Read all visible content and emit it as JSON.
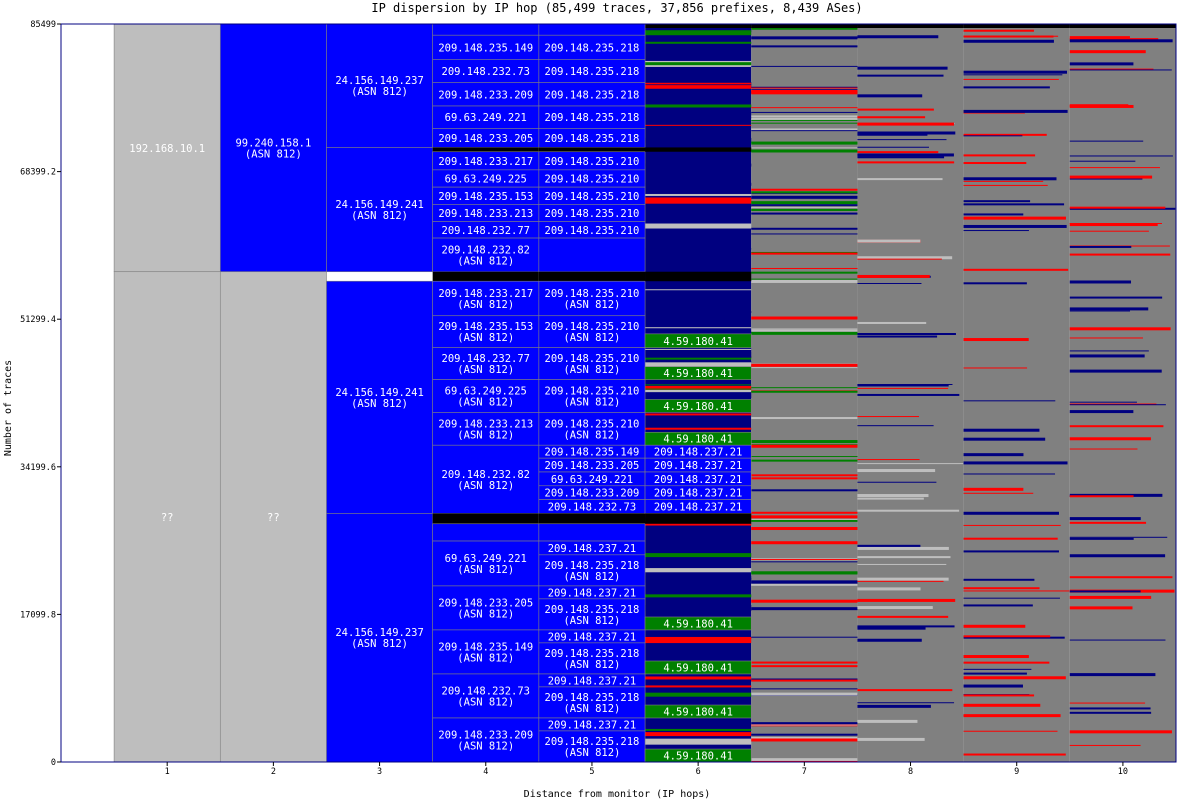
{
  "chart_data": {
    "type": "bar",
    "title": "IP dispersion by IP hop (85,499 traces, 37,856 prefixes, 8,439 ASes)",
    "xlabel": "Distance from monitor (IP hops)",
    "ylabel": "Number of traces",
    "ylim": [
      0,
      85499
    ],
    "yticks": [
      "0",
      "17099.8",
      "34199.6",
      "51299.4",
      "68399.2",
      "85499"
    ],
    "yticks_values": [
      0,
      17099.8,
      34199.6,
      51299.4,
      68399.2,
      85499
    ],
    "xticks": [
      "1",
      "2",
      "3",
      "4",
      "5",
      "6",
      "7",
      "8",
      "9",
      "10"
    ],
    "colors": {
      "blue": "#0000ff",
      "navy": "#000080",
      "green": "#008000",
      "red": "#ff0000",
      "black": "#000000",
      "gray": "#808080",
      "lightgray": "#bebebe",
      "white": "#ffffff"
    },
    "segments": [
      {
        "hop": 1,
        "y0": 56800,
        "y1": 85499,
        "color": "lightgray",
        "labels": [
          "192.168.10.1"
        ]
      },
      {
        "hop": 1,
        "y0": 0,
        "y1": 56800,
        "color": "lightgray",
        "labels": [
          "??"
        ]
      },
      {
        "hop": 2,
        "y0": 56800,
        "y1": 85499,
        "color": "blue",
        "labels": [
          "99.240.158.1",
          "(ASN 812)"
        ]
      },
      {
        "hop": 2,
        "y0": 0,
        "y1": 56800,
        "color": "lightgray",
        "labels": [
          "??"
        ]
      },
      {
        "hop": 3,
        "y0": 71200,
        "y1": 85499,
        "color": "blue",
        "labels": [
          "24.156.149.237",
          "(ASN 812)"
        ]
      },
      {
        "hop": 3,
        "y0": 56800,
        "y1": 71200,
        "color": "blue",
        "labels": [
          "24.156.149.241",
          "(ASN 812)"
        ]
      },
      {
        "hop": 3,
        "y0": 28800,
        "y1": 55700,
        "color": "blue",
        "labels": [
          "24.156.149.241",
          "(ASN 812)"
        ]
      },
      {
        "hop": 3,
        "y0": 0,
        "y1": 28800,
        "color": "blue",
        "labels": [
          "24.156.149.237",
          "(ASN 812)"
        ]
      },
      {
        "hop": 4,
        "y0": 84200,
        "y1": 85499,
        "color": "blue",
        "labels": []
      },
      {
        "hop": 4,
        "y0": 81400,
        "y1": 84200,
        "color": "blue",
        "labels": [
          "209.148.235.149"
        ]
      },
      {
        "hop": 4,
        "y0": 78700,
        "y1": 81400,
        "color": "blue",
        "labels": [
          "209.148.232.73"
        ]
      },
      {
        "hop": 4,
        "y0": 76000,
        "y1": 78700,
        "color": "blue",
        "labels": [
          "209.148.233.209"
        ]
      },
      {
        "hop": 4,
        "y0": 73400,
        "y1": 76000,
        "color": "blue",
        "labels": [
          "69.63.249.221"
        ]
      },
      {
        "hop": 4,
        "y0": 71200,
        "y1": 73400,
        "color": "blue",
        "labels": [
          "209.148.233.205"
        ]
      },
      {
        "hop": 4,
        "y0": 70700,
        "y1": 71200,
        "color": "black",
        "labels": []
      },
      {
        "hop": 4,
        "y0": 68600,
        "y1": 70700,
        "color": "blue",
        "labels": [
          "209.148.233.217"
        ]
      },
      {
        "hop": 4,
        "y0": 66600,
        "y1": 68600,
        "color": "blue",
        "labels": [
          "69.63.249.225"
        ]
      },
      {
        "hop": 4,
        "y0": 64600,
        "y1": 66600,
        "color": "blue",
        "labels": [
          "209.148.235.153"
        ]
      },
      {
        "hop": 4,
        "y0": 62600,
        "y1": 64600,
        "color": "blue",
        "labels": [
          "209.148.233.213"
        ]
      },
      {
        "hop": 4,
        "y0": 60700,
        "y1": 62600,
        "color": "blue",
        "labels": [
          "209.148.232.77"
        ]
      },
      {
        "hop": 4,
        "y0": 56800,
        "y1": 60700,
        "color": "blue",
        "labels": [
          "209.148.232.82",
          "(ASN 812)"
        ]
      },
      {
        "hop": 4,
        "y0": 55700,
        "y1": 56800,
        "color": "black",
        "labels": []
      },
      {
        "hop": 4,
        "y0": 51700,
        "y1": 55700,
        "color": "blue",
        "labels": [
          "209.148.233.217",
          "(ASN 812)"
        ]
      },
      {
        "hop": 4,
        "y0": 48000,
        "y1": 51700,
        "color": "blue",
        "labels": [
          "209.148.235.153",
          "(ASN 812)"
        ]
      },
      {
        "hop": 4,
        "y0": 44300,
        "y1": 48000,
        "color": "blue",
        "labels": [
          "209.148.232.77",
          "(ASN 812)"
        ]
      },
      {
        "hop": 4,
        "y0": 40500,
        "y1": 44300,
        "color": "blue",
        "labels": [
          "69.63.249.225",
          "(ASN 812)"
        ]
      },
      {
        "hop": 4,
        "y0": 36700,
        "y1": 40500,
        "color": "blue",
        "labels": [
          "209.148.233.213",
          "(ASN 812)"
        ]
      },
      {
        "hop": 4,
        "y0": 28800,
        "y1": 36700,
        "color": "blue",
        "labels": [
          "209.148.232.82",
          "(ASN 812)"
        ]
      },
      {
        "hop": 4,
        "y0": 27600,
        "y1": 28800,
        "color": "black",
        "labels": []
      },
      {
        "hop": 4,
        "y0": 25600,
        "y1": 27600,
        "color": "blue",
        "labels": []
      },
      {
        "hop": 4,
        "y0": 20400,
        "y1": 25600,
        "color": "blue",
        "labels": [
          "69.63.249.221",
          "(ASN 812)"
        ]
      },
      {
        "hop": 4,
        "y0": 15300,
        "y1": 20400,
        "color": "blue",
        "labels": [
          "209.148.233.205",
          "(ASN 812)"
        ]
      },
      {
        "hop": 4,
        "y0": 10200,
        "y1": 15300,
        "color": "blue",
        "labels": [
          "209.148.235.149",
          "(ASN 812)"
        ]
      },
      {
        "hop": 4,
        "y0": 5100,
        "y1": 10200,
        "color": "blue",
        "labels": [
          "209.148.232.73",
          "(ASN 812)"
        ]
      },
      {
        "hop": 4,
        "y0": 0,
        "y1": 5100,
        "color": "blue",
        "labels": [
          "209.148.233.209",
          "(ASN 812)"
        ]
      },
      {
        "hop": 5,
        "y0": 84200,
        "y1": 85499,
        "color": "blue",
        "labels": []
      },
      {
        "hop": 5,
        "y0": 81400,
        "y1": 84200,
        "color": "blue",
        "labels": [
          "209.148.235.218"
        ]
      },
      {
        "hop": 5,
        "y0": 78700,
        "y1": 81400,
        "color": "blue",
        "labels": [
          "209.148.235.218"
        ]
      },
      {
        "hop": 5,
        "y0": 76000,
        "y1": 78700,
        "color": "blue",
        "labels": [
          "209.148.235.218"
        ]
      },
      {
        "hop": 5,
        "y0": 73400,
        "y1": 76000,
        "color": "blue",
        "labels": [
          "209.148.235.218"
        ]
      },
      {
        "hop": 5,
        "y0": 71200,
        "y1": 73400,
        "color": "blue",
        "labels": [
          "209.148.235.218"
        ]
      },
      {
        "hop": 5,
        "y0": 70700,
        "y1": 71200,
        "color": "black",
        "labels": []
      },
      {
        "hop": 5,
        "y0": 68600,
        "y1": 70700,
        "color": "blue",
        "labels": [
          "209.148.235.210"
        ]
      },
      {
        "hop": 5,
        "y0": 66600,
        "y1": 68600,
        "color": "blue",
        "labels": [
          "209.148.235.210"
        ]
      },
      {
        "hop": 5,
        "y0": 64600,
        "y1": 66600,
        "color": "blue",
        "labels": [
          "209.148.235.210"
        ]
      },
      {
        "hop": 5,
        "y0": 62600,
        "y1": 64600,
        "color": "blue",
        "labels": [
          "209.148.235.210"
        ]
      },
      {
        "hop": 5,
        "y0": 60700,
        "y1": 62600,
        "color": "blue",
        "labels": [
          "209.148.235.210"
        ]
      },
      {
        "hop": 5,
        "y0": 56800,
        "y1": 60700,
        "color": "blue",
        "labels": []
      },
      {
        "hop": 5,
        "y0": 55700,
        "y1": 56800,
        "color": "black",
        "labels": []
      },
      {
        "hop": 5,
        "y0": 51700,
        "y1": 55700,
        "color": "blue",
        "labels": [
          "209.148.235.210",
          "(ASN 812)"
        ]
      },
      {
        "hop": 5,
        "y0": 48000,
        "y1": 51700,
        "color": "blue",
        "labels": [
          "209.148.235.210",
          "(ASN 812)"
        ]
      },
      {
        "hop": 5,
        "y0": 44300,
        "y1": 48000,
        "color": "blue",
        "labels": [
          "209.148.235.210",
          "(ASN 812)"
        ]
      },
      {
        "hop": 5,
        "y0": 40500,
        "y1": 44300,
        "color": "blue",
        "labels": [
          "209.148.235.210",
          "(ASN 812)"
        ]
      },
      {
        "hop": 5,
        "y0": 36700,
        "y1": 40500,
        "color": "blue",
        "labels": [
          "209.148.235.210",
          "(ASN 812)"
        ]
      },
      {
        "hop": 5,
        "y0": 35200,
        "y1": 36700,
        "color": "blue",
        "labels": [
          "209.148.235.149"
        ]
      },
      {
        "hop": 5,
        "y0": 33600,
        "y1": 35200,
        "color": "blue",
        "labels": [
          "209.148.233.205"
        ]
      },
      {
        "hop": 5,
        "y0": 32000,
        "y1": 33600,
        "color": "blue",
        "labels": [
          "69.63.249.221"
        ]
      },
      {
        "hop": 5,
        "y0": 30400,
        "y1": 32000,
        "color": "blue",
        "labels": [
          "209.148.233.209"
        ]
      },
      {
        "hop": 5,
        "y0": 28800,
        "y1": 30400,
        "color": "blue",
        "labels": [
          "209.148.232.73"
        ]
      },
      {
        "hop": 5,
        "y0": 27600,
        "y1": 28800,
        "color": "black",
        "labels": []
      },
      {
        "hop": 5,
        "y0": 25600,
        "y1": 27600,
        "color": "blue",
        "labels": []
      },
      {
        "hop": 5,
        "y0": 24000,
        "y1": 25600,
        "color": "blue",
        "labels": [
          "209.148.237.21"
        ]
      },
      {
        "hop": 5,
        "y0": 20400,
        "y1": 24000,
        "color": "blue",
        "labels": [
          "209.148.235.218",
          "(ASN 812)"
        ]
      },
      {
        "hop": 5,
        "y0": 18900,
        "y1": 20400,
        "color": "blue",
        "labels": [
          "209.148.237.21"
        ]
      },
      {
        "hop": 5,
        "y0": 15300,
        "y1": 18900,
        "color": "blue",
        "labels": [
          "209.148.235.218",
          "(ASN 812)"
        ]
      },
      {
        "hop": 5,
        "y0": 13800,
        "y1": 15300,
        "color": "blue",
        "labels": [
          "209.148.237.21"
        ]
      },
      {
        "hop": 5,
        "y0": 10200,
        "y1": 13800,
        "color": "blue",
        "labels": [
          "209.148.235.218",
          "(ASN 812)"
        ]
      },
      {
        "hop": 5,
        "y0": 8700,
        "y1": 10200,
        "color": "blue",
        "labels": [
          "209.148.237.21"
        ]
      },
      {
        "hop": 5,
        "y0": 5100,
        "y1": 8700,
        "color": "blue",
        "labels": [
          "209.148.235.218",
          "(ASN 812)"
        ]
      },
      {
        "hop": 5,
        "y0": 3600,
        "y1": 5100,
        "color": "blue",
        "labels": [
          "209.148.237.21"
        ]
      },
      {
        "hop": 5,
        "y0": 0,
        "y1": 3600,
        "color": "blue",
        "labels": [
          "209.148.235.218",
          "(ASN 812)"
        ]
      },
      {
        "hop": 6,
        "y0": 70700,
        "y1": 71200,
        "color": "black",
        "labels": []
      },
      {
        "hop": 6,
        "y0": 55700,
        "y1": 56800,
        "color": "black",
        "labels": []
      },
      {
        "hop": 6,
        "y0": 48000,
        "y1": 49600,
        "color": "green",
        "labels": [
          "4.59.180.41"
        ]
      },
      {
        "hop": 6,
        "y0": 44300,
        "y1": 45800,
        "color": "green",
        "labels": [
          "4.59.180.41"
        ]
      },
      {
        "hop": 6,
        "y0": 40500,
        "y1": 42000,
        "color": "green",
        "labels": [
          "4.59.180.41"
        ]
      },
      {
        "hop": 6,
        "y0": 36700,
        "y1": 38200,
        "color": "green",
        "labels": [
          "4.59.180.41"
        ]
      },
      {
        "hop": 6,
        "y0": 35200,
        "y1": 36700,
        "color": "blue",
        "labels": [
          "209.148.237.21"
        ]
      },
      {
        "hop": 6,
        "y0": 33600,
        "y1": 35200,
        "color": "blue",
        "labels": [
          "209.148.237.21"
        ]
      },
      {
        "hop": 6,
        "y0": 32000,
        "y1": 33600,
        "color": "blue",
        "labels": [
          "209.148.237.21"
        ]
      },
      {
        "hop": 6,
        "y0": 30400,
        "y1": 32000,
        "color": "blue",
        "labels": [
          "209.148.237.21"
        ]
      },
      {
        "hop": 6,
        "y0": 28800,
        "y1": 30400,
        "color": "blue",
        "labels": [
          "209.148.237.21"
        ]
      },
      {
        "hop": 6,
        "y0": 27600,
        "y1": 28800,
        "color": "black",
        "labels": []
      },
      {
        "hop": 6,
        "y0": 15300,
        "y1": 16800,
        "color": "green",
        "labels": [
          "4.59.180.41"
        ]
      },
      {
        "hop": 6,
        "y0": 10200,
        "y1": 11700,
        "color": "green",
        "labels": [
          "4.59.180.41"
        ]
      },
      {
        "hop": 6,
        "y0": 5100,
        "y1": 6600,
        "color": "green",
        "labels": [
          "4.59.180.41"
        ]
      },
      {
        "hop": 6,
        "y0": 0,
        "y1": 1500,
        "color": "green",
        "labels": [
          "4.59.180.41"
        ]
      }
    ]
  }
}
